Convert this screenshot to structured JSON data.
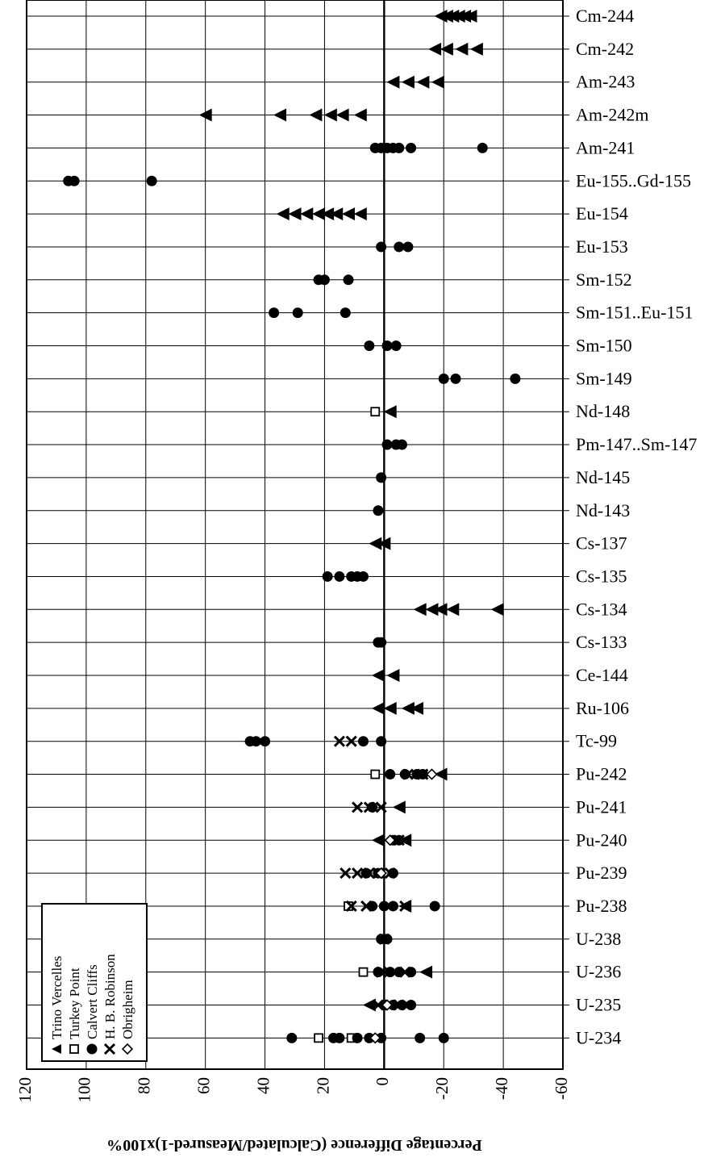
{
  "chart_data": {
    "type": "scatter",
    "orientation": "x-axis values read reversed (positive to the left)",
    "xlabel": "Percentage Difference (Calculated/Measured-1)x100%",
    "xlim": [
      120,
      -60
    ],
    "xticks": [
      120,
      100,
      80,
      60,
      40,
      20,
      0,
      -20,
      -40,
      -60
    ],
    "grid": true,
    "legend_position": "bottom-left (rotated)",
    "categories": [
      "Cm-244",
      "Cm-242",
      "Am-243",
      "Am-242m",
      "Am-241",
      "Eu-155..Gd-155",
      "Eu-154",
      "Eu-153",
      "Sm-152",
      "Sm-151..Eu-151",
      "Sm-150",
      "Sm-149",
      "Nd-148",
      "Pm-147..Sm-147",
      "Nd-145",
      "Nd-143",
      "Cs-137",
      "Cs-135",
      "Cs-134",
      "Cs-133",
      "Ce-144",
      "Ru-106",
      "Tc-99",
      "Pu-242",
      "Pu-241",
      "Pu-240",
      "Pu-239",
      "Pu-238",
      "U-238",
      "U-236",
      "U-235",
      "U-234"
    ],
    "series": [
      {
        "name": "Trino Vercelles",
        "marker": "triangle-left",
        "points": [
          [
            "Cm-244",
            -19
          ],
          [
            "Cm-244",
            -21
          ],
          [
            "Cm-244",
            -23
          ],
          [
            "Cm-244",
            -25
          ],
          [
            "Cm-244",
            -27
          ],
          [
            "Cm-244",
            -29
          ],
          [
            "Cm-242",
            -17
          ],
          [
            "Cm-242",
            -21
          ],
          [
            "Cm-242",
            -26
          ],
          [
            "Cm-242",
            -31
          ],
          [
            "Am-243",
            -3
          ],
          [
            "Am-243",
            -8
          ],
          [
            "Am-243",
            -13
          ],
          [
            "Am-243",
            -18
          ],
          [
            "Am-242m",
            60
          ],
          [
            "Am-242m",
            35
          ],
          [
            "Am-242m",
            23
          ],
          [
            "Am-242m",
            18
          ],
          [
            "Am-242m",
            14
          ],
          [
            "Am-242m",
            8
          ],
          [
            "Eu-154",
            34
          ],
          [
            "Eu-154",
            30
          ],
          [
            "Eu-154",
            26
          ],
          [
            "Eu-154",
            22
          ],
          [
            "Eu-154",
            19
          ],
          [
            "Eu-154",
            16
          ],
          [
            "Eu-154",
            12
          ],
          [
            "Eu-154",
            8
          ],
          [
            "Nd-148",
            -2
          ],
          [
            "Cs-137",
            3
          ],
          [
            "Cs-137",
            0
          ],
          [
            "Cs-134",
            -12
          ],
          [
            "Cs-134",
            -16
          ],
          [
            "Cs-134",
            -19
          ],
          [
            "Cs-134",
            -23
          ],
          [
            "Cs-134",
            -38
          ],
          [
            "Ce-144",
            2
          ],
          [
            "Ce-144",
            -3
          ],
          [
            "Ru-106",
            2
          ],
          [
            "Ru-106",
            -2
          ],
          [
            "Ru-106",
            -8
          ],
          [
            "Ru-106",
            -11
          ],
          [
            "Pu-242",
            -19
          ],
          [
            "Pu-241",
            -5
          ],
          [
            "Pu-240",
            2
          ],
          [
            "Pu-240",
            -7
          ],
          [
            "Pu-238",
            -7
          ],
          [
            "U-236",
            -14
          ],
          [
            "U-235",
            5
          ]
        ]
      },
      {
        "name": "Turkey Point",
        "marker": "square-open",
        "points": [
          [
            "Nd-148",
            3
          ],
          [
            "Pu-242",
            3
          ],
          [
            "Pu-238",
            12
          ],
          [
            "U-236",
            7
          ],
          [
            "U-234",
            22
          ],
          [
            "U-234",
            11
          ]
        ]
      },
      {
        "name": "Calvert Cliffs",
        "marker": "circle-filled",
        "points": [
          [
            "Am-241",
            3
          ],
          [
            "Am-241",
            1
          ],
          [
            "Am-241",
            -1
          ],
          [
            "Am-241",
            -3
          ],
          [
            "Am-241",
            -5
          ],
          [
            "Am-241",
            -9
          ],
          [
            "Am-241",
            -33
          ],
          [
            "Eu-155..Gd-155",
            106
          ],
          [
            "Eu-155..Gd-155",
            104
          ],
          [
            "Eu-155..Gd-155",
            78
          ],
          [
            "Eu-153",
            1
          ],
          [
            "Eu-153",
            -5
          ],
          [
            "Eu-153",
            -8
          ],
          [
            "Sm-152",
            22
          ],
          [
            "Sm-152",
            20
          ],
          [
            "Sm-152",
            12
          ],
          [
            "Sm-151..Eu-151",
            37
          ],
          [
            "Sm-151..Eu-151",
            29
          ],
          [
            "Sm-151..Eu-151",
            13
          ],
          [
            "Sm-150",
            5
          ],
          [
            "Sm-150",
            -1
          ],
          [
            "Sm-150",
            -4
          ],
          [
            "Sm-149",
            -20
          ],
          [
            "Sm-149",
            -24
          ],
          [
            "Sm-149",
            -44
          ],
          [
            "Pm-147..Sm-147",
            -1
          ],
          [
            "Pm-147..Sm-147",
            -4
          ],
          [
            "Pm-147..Sm-147",
            -6
          ],
          [
            "Nd-145",
            1
          ],
          [
            "Nd-143",
            2
          ],
          [
            "Cs-135",
            19
          ],
          [
            "Cs-135",
            15
          ],
          [
            "Cs-135",
            11
          ],
          [
            "Cs-135",
            9
          ],
          [
            "Cs-135",
            7
          ],
          [
            "Cs-133",
            2
          ],
          [
            "Cs-133",
            1
          ],
          [
            "Tc-99",
            45
          ],
          [
            "Tc-99",
            43
          ],
          [
            "Tc-99",
            40
          ],
          [
            "Tc-99",
            7
          ],
          [
            "Tc-99",
            1
          ],
          [
            "Pu-242",
            -2
          ],
          [
            "Pu-242",
            -7
          ],
          [
            "Pu-242",
            -11
          ],
          [
            "Pu-242",
            -13
          ],
          [
            "Pu-241",
            4
          ],
          [
            "Pu-240",
            -3
          ],
          [
            "Pu-240",
            -5
          ],
          [
            "Pu-239",
            6
          ],
          [
            "Pu-239",
            2
          ],
          [
            "Pu-239",
            -3
          ],
          [
            "Pu-238",
            4
          ],
          [
            "Pu-238",
            0
          ],
          [
            "Pu-238",
            -3
          ],
          [
            "Pu-238",
            -17
          ],
          [
            "U-238",
            1
          ],
          [
            "U-238",
            -1
          ],
          [
            "U-236",
            2
          ],
          [
            "U-236",
            -2
          ],
          [
            "U-236",
            -5
          ],
          [
            "U-236",
            -9
          ],
          [
            "U-235",
            0
          ],
          [
            "U-235",
            -3
          ],
          [
            "U-235",
            -6
          ],
          [
            "U-235",
            -9
          ],
          [
            "U-234",
            31
          ],
          [
            "U-234",
            17
          ],
          [
            "U-234",
            15
          ],
          [
            "U-234",
            9
          ],
          [
            "U-234",
            5
          ],
          [
            "U-234",
            1
          ],
          [
            "U-234",
            -12
          ],
          [
            "U-234",
            -20
          ]
        ]
      },
      {
        "name": "H. B. Robinson",
        "marker": "x",
        "points": [
          [
            "Tc-99",
            15
          ],
          [
            "Tc-99",
            11
          ],
          [
            "Pu-242",
            -8
          ],
          [
            "Pu-242",
            -13
          ],
          [
            "Pu-241",
            9
          ],
          [
            "Pu-241",
            5
          ],
          [
            "Pu-241",
            1
          ],
          [
            "Pu-240",
            -5
          ],
          [
            "Pu-239",
            13
          ],
          [
            "Pu-239",
            9
          ],
          [
            "Pu-239",
            5
          ],
          [
            "Pu-239",
            2
          ],
          [
            "Pu-239",
            -2
          ],
          [
            "Pu-238",
            11
          ],
          [
            "Pu-238",
            6
          ],
          [
            "Pu-238",
            -7
          ],
          [
            "U-238",
            0
          ],
          [
            "U-236",
            1
          ],
          [
            "U-236",
            -7
          ],
          [
            "U-235",
            2
          ],
          [
            "U-235",
            -2
          ],
          [
            "U-235",
            -5
          ]
        ]
      },
      {
        "name": "Obrigheim",
        "marker": "diamond-open",
        "points": [
          [
            "Pu-242",
            -16
          ],
          [
            "Pu-240",
            -2
          ],
          [
            "Pu-239",
            1
          ],
          [
            "U-235",
            -1
          ],
          [
            "U-234",
            3
          ]
        ]
      }
    ]
  }
}
